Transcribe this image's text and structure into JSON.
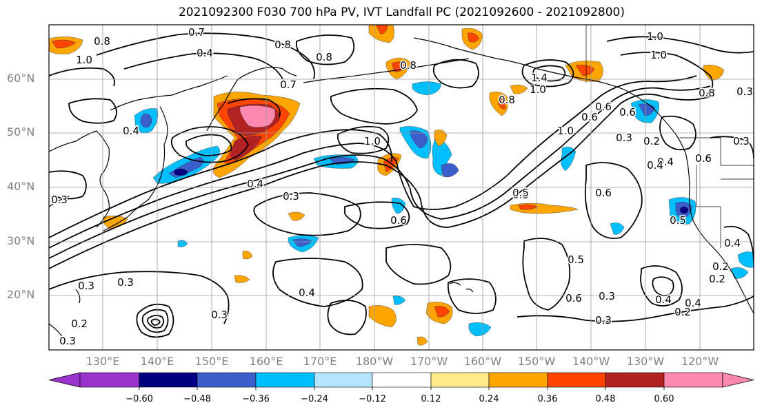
{
  "title": "2021092300 F030 700 hPa PV, IVT Landfall PC (2021092600 - 2021092800)",
  "map": {
    "lat_labels": [
      "60°N",
      "50°N",
      "40°N",
      "30°N",
      "20°N"
    ],
    "lon_labels": [
      "130°E",
      "140°E",
      "150°E",
      "160°E",
      "170°E",
      "180°W",
      "170°W",
      "160°W",
      "150°W",
      "140°W",
      "130°W",
      "120°W"
    ],
    "contour_labels": [
      "0.7",
      "0.4",
      "0.8",
      "1.0",
      "0.8",
      "0.4",
      "0.8",
      "1.0",
      "1.4",
      "1.0",
      "0.5",
      "0.3",
      "0.6",
      "0.8",
      "0.7",
      "0.4",
      "0.6",
      "0.6",
      "0.4",
      "1.0",
      "0.8",
      "1.0",
      "1.0",
      "0.6",
      "0.3",
      "0.2",
      "0.4",
      "0.6",
      "0.4",
      "0.3",
      "0.8",
      "0.5",
      "0.6",
      "0.5",
      "0.3",
      "0.3",
      "0.4",
      "0.3",
      "0.2",
      "0.3",
      "0.3",
      "0.4",
      "0.2",
      "0.6",
      "0.3",
      "0.5",
      "0.2",
      "0.3",
      "0.4",
      "0.2",
      "0.3"
    ],
    "colors": {
      "grid": "#9a9a9a",
      "contour": "#000000",
      "coast": "#000000"
    }
  },
  "colorbar": {
    "colors": [
      "#9933cc",
      "#000080",
      "#3a5fcd",
      "#00bfff",
      "#b3e5fc",
      "#ffffff",
      "#ffeb8a",
      "#ffa500",
      "#ff4500",
      "#b22222",
      "#ff88b0"
    ],
    "ticks": [
      "−0.60",
      "−0.48",
      "−0.36",
      "−0.24",
      "−0.12",
      "0.12",
      "0.24",
      "0.36",
      "0.48",
      "0.60"
    ]
  }
}
